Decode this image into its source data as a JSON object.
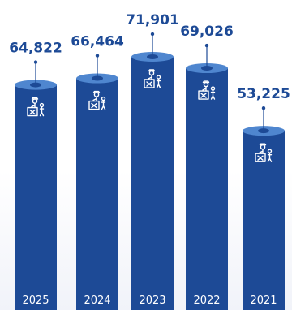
{
  "chart_data": {
    "type": "bar",
    "categories": [
      "2025",
      "2024",
      "2023",
      "2022",
      "2021"
    ],
    "series": [
      {
        "values": [
          64822,
          66464,
          71901,
          69026,
          53225
        ]
      }
    ],
    "data_labels": [
      "64,822",
      "66,464",
      "71,901",
      "69,026",
      "53,225"
    ],
    "title": "",
    "xlabel": "",
    "ylabel": "",
    "bar_shape": "cylinder",
    "bar_icon": "customs-officer-with-luggage-icon",
    "grid": false,
    "legend": "none"
  },
  "colors": {
    "bar": "#1d4a96",
    "bar_top": "#4f86cf",
    "bar_top_hole": "#1d4a96",
    "label": "#1d4a96",
    "year_text": "#ffffff",
    "icon": "#ffffff"
  }
}
